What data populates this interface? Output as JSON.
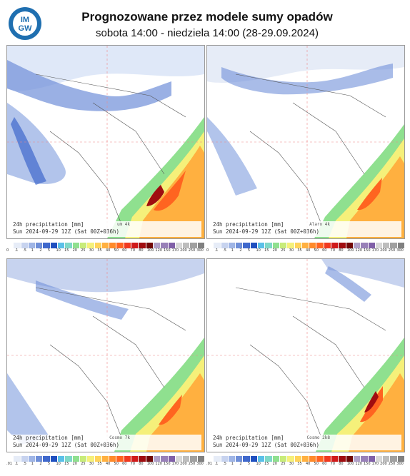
{
  "header": {
    "logo_text_top": "IM",
    "logo_text_bottom": "GW",
    "title": "Prognozowane przez modele sumy opadów",
    "subtitle": "sobota 14:00 - niedziela 14:00 (28-29.09.2024)"
  },
  "colors": {
    "ocean": "#a8c8f0",
    "scale": [
      "#ffffff",
      "#e6ecf7",
      "#c7d3ef",
      "#9fb5e6",
      "#6f8fd8",
      "#3f68cc",
      "#1f4fbf",
      "#5bc0e8",
      "#7fd8c8",
      "#8fe08f",
      "#c8ec7a",
      "#f5f07a",
      "#ffd35a",
      "#ffb040",
      "#ff8a2a",
      "#ff6420",
      "#f03a20",
      "#d01a1a",
      "#a00d10",
      "#700808",
      "#b0a0c8",
      "#9880b8",
      "#8060a8",
      "#d8d8d8",
      "#bdbdbd",
      "#a0a0a0",
      "#808080"
    ]
  },
  "scale_labels": [
    "0",
    ".1",
    ".5",
    "1",
    "2",
    "5",
    "10",
    "15",
    "20",
    "25",
    "30",
    "35",
    "40",
    "50",
    "60",
    "70",
    "80",
    "100",
    "120",
    "150",
    "170",
    "200",
    "250",
    "300"
  ],
  "scale_labels_alt": [
    ".01",
    ".1",
    ".5",
    "1",
    "2",
    "5",
    "10",
    "15",
    "20",
    "25",
    "30",
    "35",
    "40",
    "50",
    "60",
    "70",
    "80",
    "100",
    "120",
    "150",
    "170",
    "200",
    "250",
    "300"
  ],
  "panels": [
    {
      "line1": "24h precipitation   [mm]",
      "model": "um 4k",
      "line2": "Sun 2024-09-29 12Z (Sat 00Z+036h)"
    },
    {
      "line1": "24h precipitation   [mm]",
      "model": "Alaro 4k",
      "line2": "Sun 2024-09-29 12Z (Sat 00Z+036h)"
    },
    {
      "line1": "24h precipitation   [mm]",
      "model": "Cosmo 7k",
      "line2": "Sun 2024-09-29 12Z (Sat 00Z+036h)"
    },
    {
      "line1": "24h precipitation   [mm]",
      "model": "Cosmo 2k8",
      "line2": "Sun 2024-09-29 12Z (Sat 00Z+036h)"
    }
  ]
}
